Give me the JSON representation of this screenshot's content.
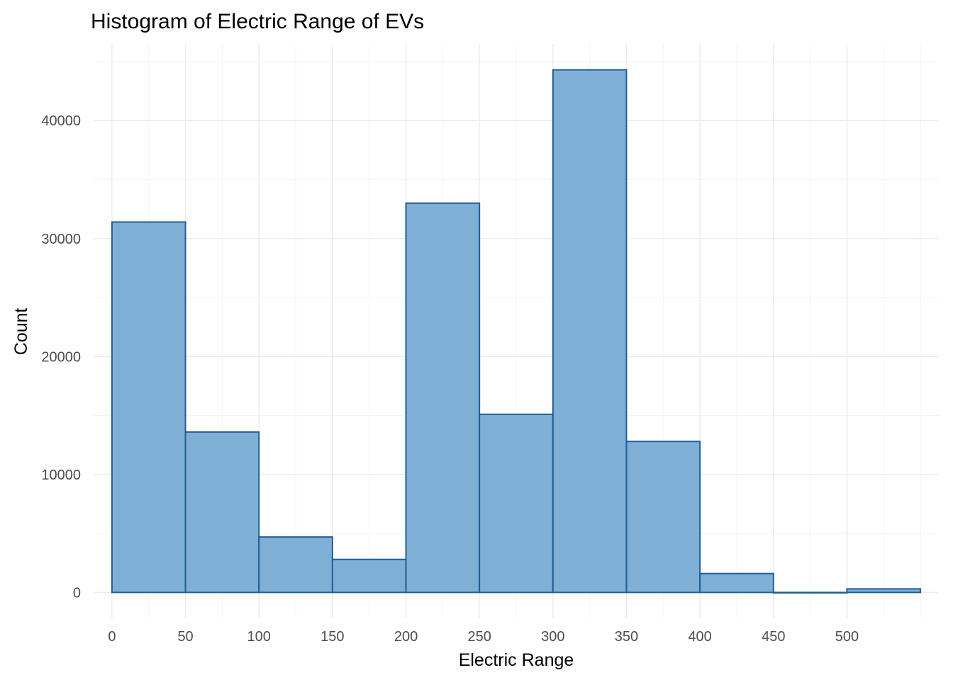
{
  "chart_data": {
    "type": "bar",
    "title": "Histogram of Electric Range of EVs",
    "xlabel": "Electric Range",
    "ylabel": "Count",
    "bin_width": 50,
    "bins": [
      {
        "start": 0,
        "end": 50,
        "count": 31400
      },
      {
        "start": 50,
        "end": 100,
        "count": 13600
      },
      {
        "start": 100,
        "end": 150,
        "count": 4700
      },
      {
        "start": 150,
        "end": 200,
        "count": 2800
      },
      {
        "start": 200,
        "end": 250,
        "count": 33000
      },
      {
        "start": 250,
        "end": 300,
        "count": 15100
      },
      {
        "start": 300,
        "end": 350,
        "count": 44300
      },
      {
        "start": 350,
        "end": 400,
        "count": 12800
      },
      {
        "start": 400,
        "end": 450,
        "count": 1600
      },
      {
        "start": 450,
        "end": 500,
        "count": 0
      },
      {
        "start": 500,
        "end": 550,
        "count": 300
      }
    ],
    "xlim": [
      -12.5,
      562.5
    ],
    "ylim": [
      -2200,
      46500
    ],
    "x_ticks": [
      0,
      50,
      100,
      150,
      200,
      250,
      300,
      350,
      400,
      450,
      500
    ],
    "x_tick_labels": [
      "0",
      "50",
      "100",
      "150",
      "200",
      "250",
      "300",
      "350",
      "400",
      "450",
      "500"
    ],
    "x_minor_grid": [
      25,
      75,
      125,
      175,
      225,
      275,
      325,
      375,
      425,
      475,
      525,
      550
    ],
    "y_ticks": [
      0,
      10000,
      20000,
      30000,
      40000
    ],
    "y_tick_labels": [
      "0",
      "10000",
      "20000",
      "30000",
      "40000"
    ],
    "y_minor_grid": [
      5000,
      15000,
      25000,
      35000,
      45000
    ],
    "grid": true,
    "legend": "none",
    "colors": {
      "bar_fill": "#7fafd4",
      "bar_stroke": "#1f5f99"
    }
  }
}
